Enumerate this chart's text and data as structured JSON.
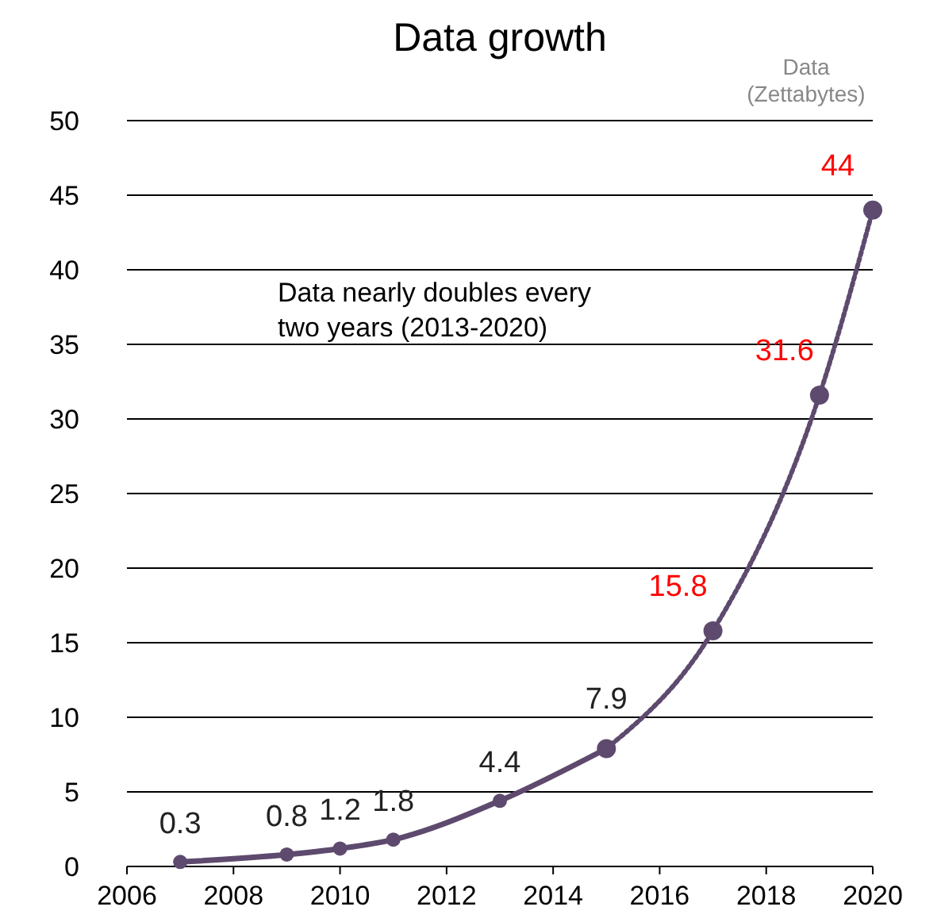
{
  "chart_data": {
    "type": "line",
    "title": "Data growth",
    "ylabel": "Data (Zettabytes)",
    "annotations": [
      "Data nearly doubles every two years (2013-2020)"
    ],
    "xlim": [
      2006,
      2020
    ],
    "xticks": [
      2006,
      2008,
      2010,
      2012,
      2014,
      2016,
      2018,
      2020
    ],
    "ylim": [
      0,
      50
    ],
    "yticks": [
      0,
      5,
      10,
      15,
      20,
      25,
      30,
      35,
      40,
      45,
      50
    ],
    "grid": "y",
    "marker": "circle",
    "series": [
      {
        "color": "#5e4a6e",
        "line_style": "solid",
        "x": [
          2007,
          2009,
          2010,
          2011,
          2013,
          2015
        ],
        "values": [
          0.3,
          0.8,
          1.2,
          1.8,
          4.4,
          7.9
        ],
        "value_labels": [
          "0.3",
          "0.8",
          "1.2",
          "1.8",
          "4.4",
          "7.9"
        ]
      },
      {
        "color": "#5e4a6e",
        "line_style": "dotted",
        "x": [
          2015,
          2017,
          2019,
          2020
        ],
        "values": [
          7.9,
          15.8,
          31.6,
          44
        ],
        "value_labels": [
          null,
          "15.8",
          "31.6",
          "44"
        ]
      }
    ]
  }
}
